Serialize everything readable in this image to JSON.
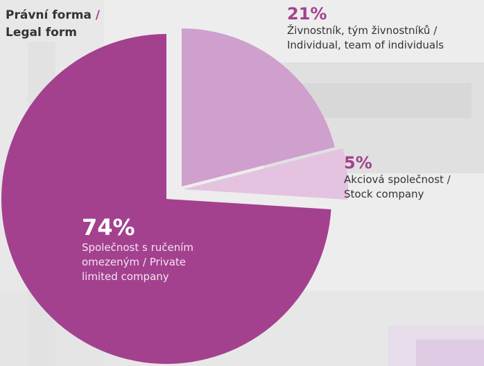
{
  "header": {
    "title_part1": "Právní forma",
    "title_slash": " /",
    "title_part2": "Legal form"
  },
  "colors": {
    "accent": "#a3418f",
    "slice_ltd": "#a3418f",
    "slice_individual": "#cf9fce",
    "slice_stock": "#e4c3e0",
    "background": "#efefef"
  },
  "chart_data": {
    "type": "pie",
    "title": "Právní forma / Legal form",
    "slices": [
      {
        "key": "individual",
        "value": 21,
        "pct_label": "21%",
        "label": "Živnostník, tým živnostníků / \nIndividual, team of individuals"
      },
      {
        "key": "stock",
        "value": 5,
        "pct_label": "5%",
        "label": "Akciová společnost / \nStock company"
      },
      {
        "key": "ltd",
        "value": 74,
        "pct_label": "74%",
        "label": "Společnost s ručením \nomezeným / Private \nlimited company"
      }
    ],
    "exploded": [
      "individual",
      "stock"
    ]
  }
}
